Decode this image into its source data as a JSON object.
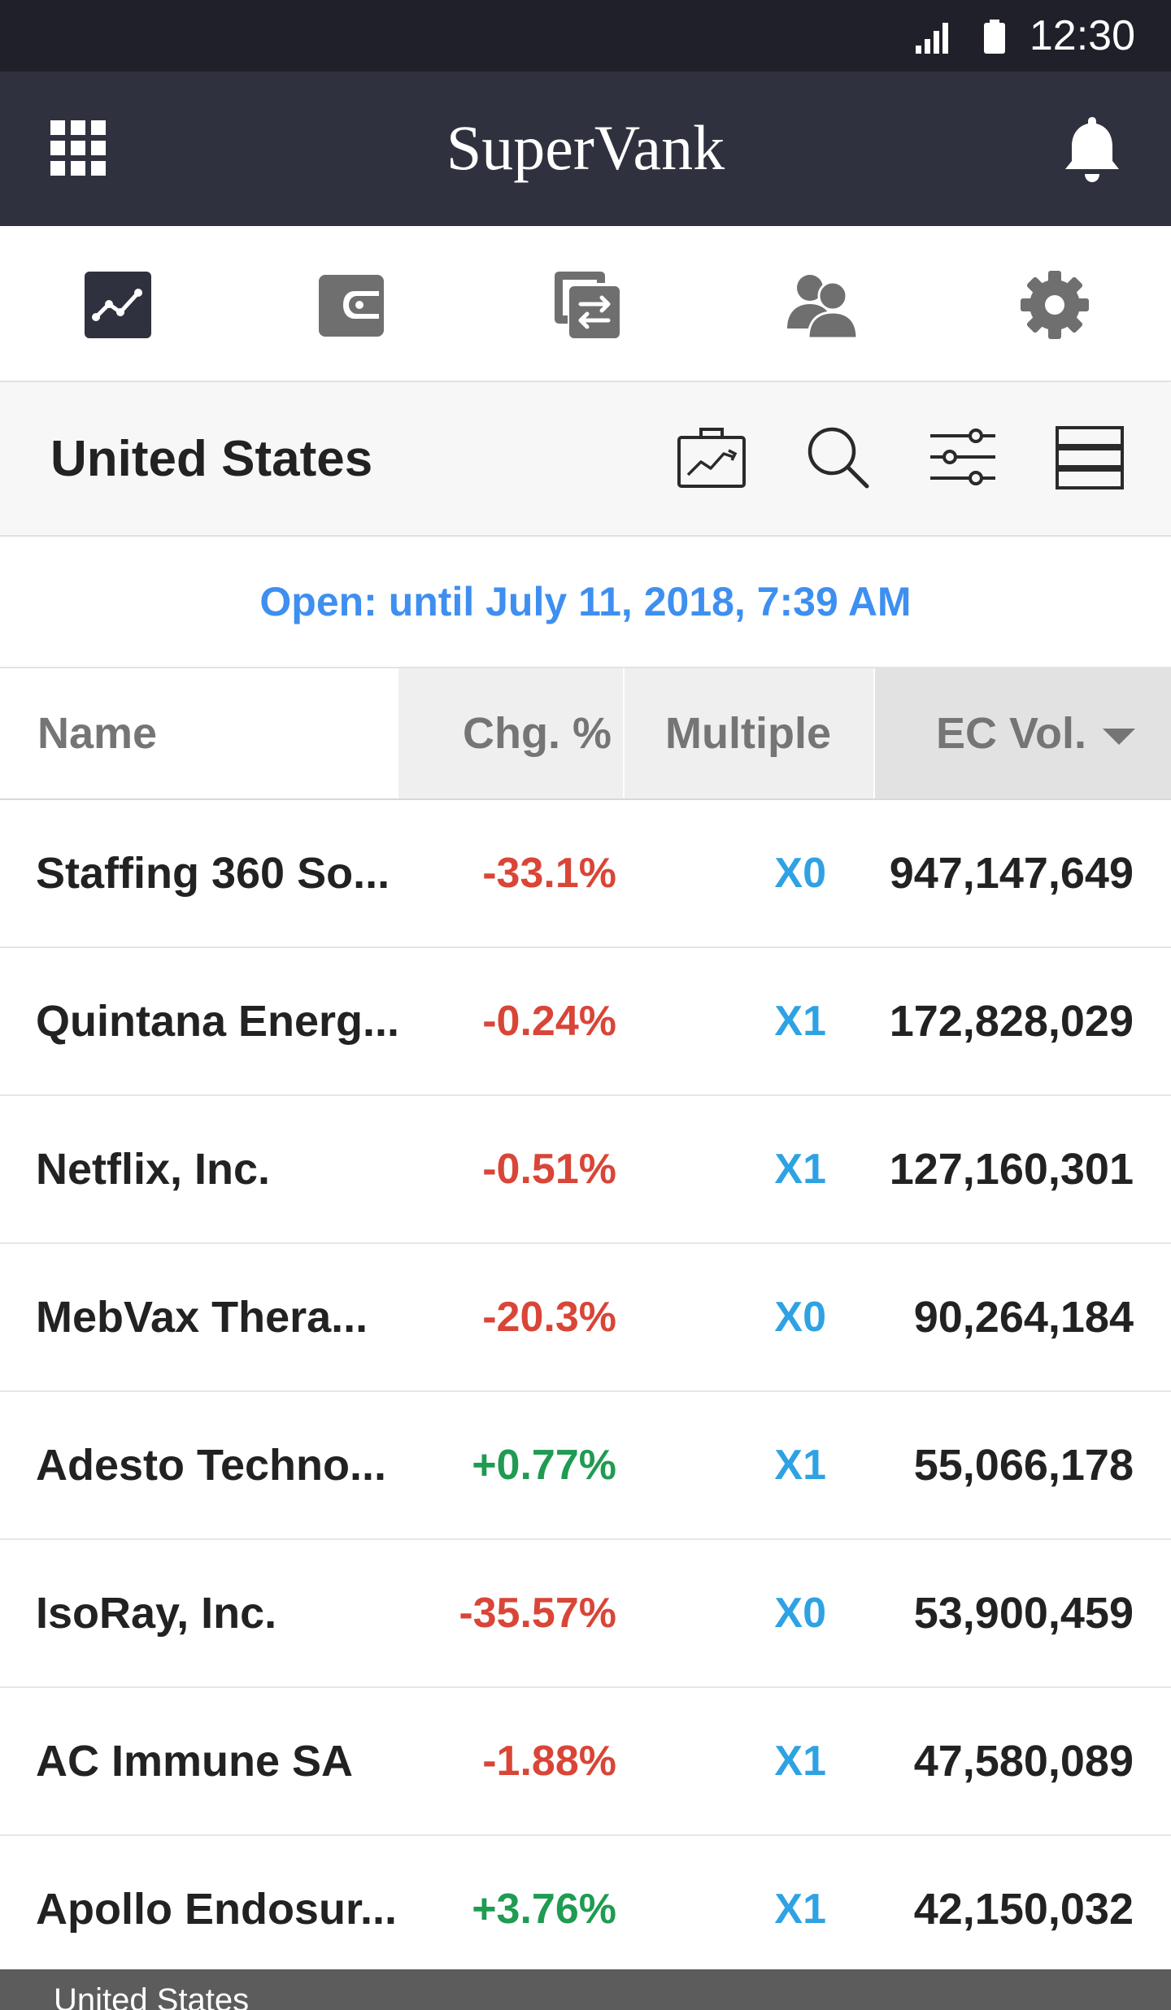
{
  "status_bar": {
    "time": "12:30",
    "icons": [
      "signal-icon",
      "battery-icon"
    ]
  },
  "app_bar": {
    "title": "SuperVank",
    "left_icon": "grid-menu-icon",
    "right_icon": "bell-icon"
  },
  "nav_tabs": [
    {
      "icon": "chart-line-icon",
      "active": true
    },
    {
      "icon": "wallet-icon",
      "active": false
    },
    {
      "icon": "transfer-icon",
      "active": false
    },
    {
      "icon": "users-icon",
      "active": false
    },
    {
      "icon": "gear-icon",
      "active": false
    }
  ],
  "subheader": {
    "title": "United States",
    "tools": [
      "portfolio-icon",
      "search-icon",
      "filter-sliders-icon",
      "list-view-icon"
    ]
  },
  "market_status": "Open: until July 11, 2018, 7:39 AM",
  "table": {
    "columns": {
      "name": "Name",
      "change": "Chg. %",
      "multiple": "Multiple",
      "volume": "EC Vol."
    },
    "sort_column": "volume",
    "rows": [
      {
        "name": "Staffing 360 So...",
        "change": "-33.1%",
        "direction": "down",
        "multiple": "X0",
        "volume": "947,147,649"
      },
      {
        "name": "Quintana Energ...",
        "change": "-0.24%",
        "direction": "down",
        "multiple": "X1",
        "volume": "172,828,029"
      },
      {
        "name": "Netflix, Inc.",
        "change": "-0.51%",
        "direction": "down",
        "multiple": "X1",
        "volume": "127,160,301"
      },
      {
        "name": "MebVax Thera...",
        "change": "-20.3%",
        "direction": "down",
        "multiple": "X0",
        "volume": "90,264,184"
      },
      {
        "name": "Adesto Techno...",
        "change": "+0.77%",
        "direction": "up",
        "multiple": "X1",
        "volume": "55,066,178"
      },
      {
        "name": "IsoRay, Inc.",
        "change": "-35.57%",
        "direction": "down",
        "multiple": "X0",
        "volume": "53,900,459"
      },
      {
        "name": "AC Immune SA",
        "change": "-1.88%",
        "direction": "down",
        "multiple": "X1",
        "volume": "47,580,089"
      },
      {
        "name": "Apollo Endosur...",
        "change": "+3.76%",
        "direction": "up",
        "multiple": "X1",
        "volume": "42,150,032"
      }
    ]
  },
  "bottom_bar": {
    "label": "United States"
  },
  "colors": {
    "status_bar_bg": "#1f2029",
    "app_bar_bg": "#2f323e",
    "accent_blue": "#3e8ff0",
    "multiple_blue": "#2ea2e3",
    "negative_red": "#d94537",
    "positive_green": "#1f9b52"
  }
}
